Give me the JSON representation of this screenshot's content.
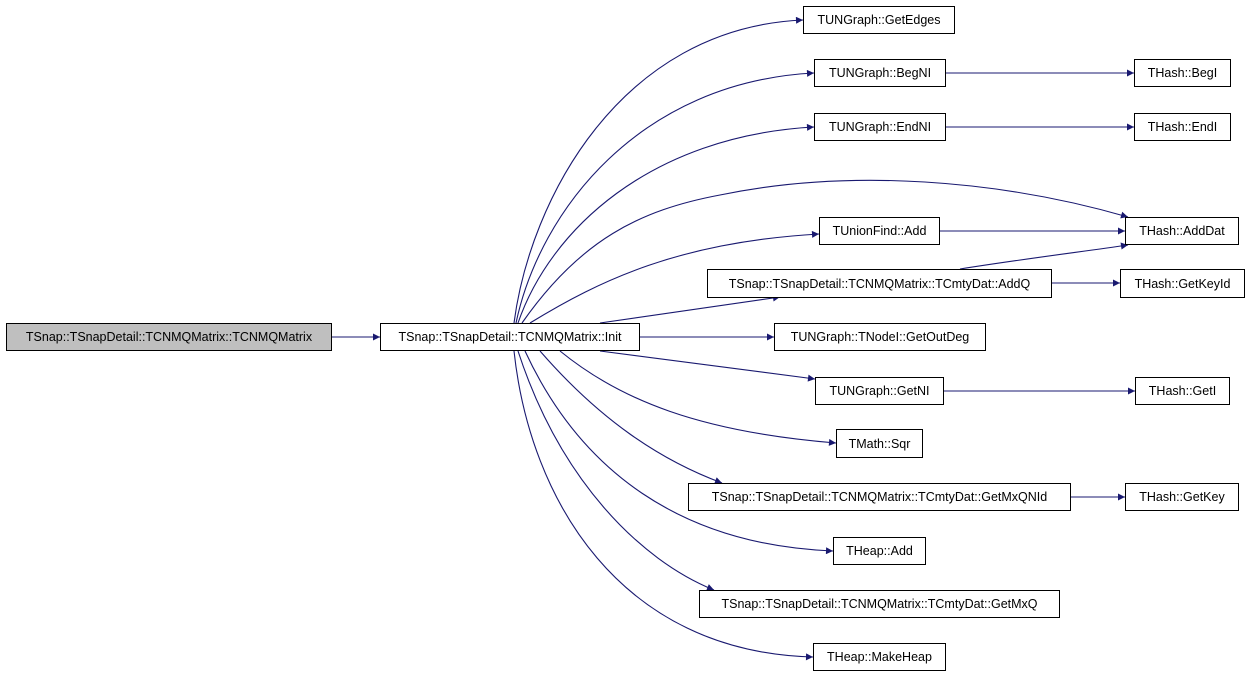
{
  "graph": {
    "edge_color": "#191970",
    "root_fill": "#bfbfbf",
    "nodes": {
      "root": "TSnap::TSnapDetail::TCNMQMatrix::TCNMQMatrix",
      "init": "TSnap::TSnapDetail::TCNMQMatrix::Init",
      "get_edges": "TUNGraph::GetEdges",
      "beg_ni": "TUNGraph::BegNI",
      "end_ni": "TUNGraph::EndNI",
      "union_find_add": "TUnionFind::Add",
      "add_q": "TSnap::TSnapDetail::TCNMQMatrix::TCmtyDat::AddQ",
      "get_out_deg": "TUNGraph::TNodeI::GetOutDeg",
      "get_ni": "TUNGraph::GetNI",
      "sqr": "TMath::Sqr",
      "get_mx_qn_id": "TSnap::TSnapDetail::TCNMQMatrix::TCmtyDat::GetMxQNId",
      "heap_add": "THeap::Add",
      "get_mx_q": "TSnap::TSnapDetail::TCNMQMatrix::TCmtyDat::GetMxQ",
      "make_heap": "THeap::MakeHeap",
      "hash_beg_i": "THash::BegI",
      "hash_end_i": "THash::EndI",
      "hash_add_dat": "THash::AddDat",
      "hash_get_key_id": "THash::GetKeyId",
      "hash_get_i": "THash::GetI",
      "hash_get_key": "THash::GetKey"
    },
    "edges": [
      [
        "root",
        "init"
      ],
      [
        "init",
        "get_edges"
      ],
      [
        "init",
        "beg_ni"
      ],
      [
        "init",
        "end_ni"
      ],
      [
        "init",
        "hash_add_dat"
      ],
      [
        "init",
        "union_find_add"
      ],
      [
        "init",
        "add_q"
      ],
      [
        "init",
        "get_out_deg"
      ],
      [
        "init",
        "get_ni"
      ],
      [
        "init",
        "sqr"
      ],
      [
        "init",
        "get_mx_qn_id"
      ],
      [
        "init",
        "heap_add"
      ],
      [
        "init",
        "get_mx_q"
      ],
      [
        "init",
        "make_heap"
      ],
      [
        "beg_ni",
        "hash_beg_i"
      ],
      [
        "end_ni",
        "hash_end_i"
      ],
      [
        "union_find_add",
        "hash_add_dat"
      ],
      [
        "add_q",
        "hash_add_dat"
      ],
      [
        "add_q",
        "hash_get_key_id"
      ],
      [
        "get_ni",
        "hash_get_i"
      ],
      [
        "get_mx_qn_id",
        "hash_get_key"
      ]
    ]
  }
}
